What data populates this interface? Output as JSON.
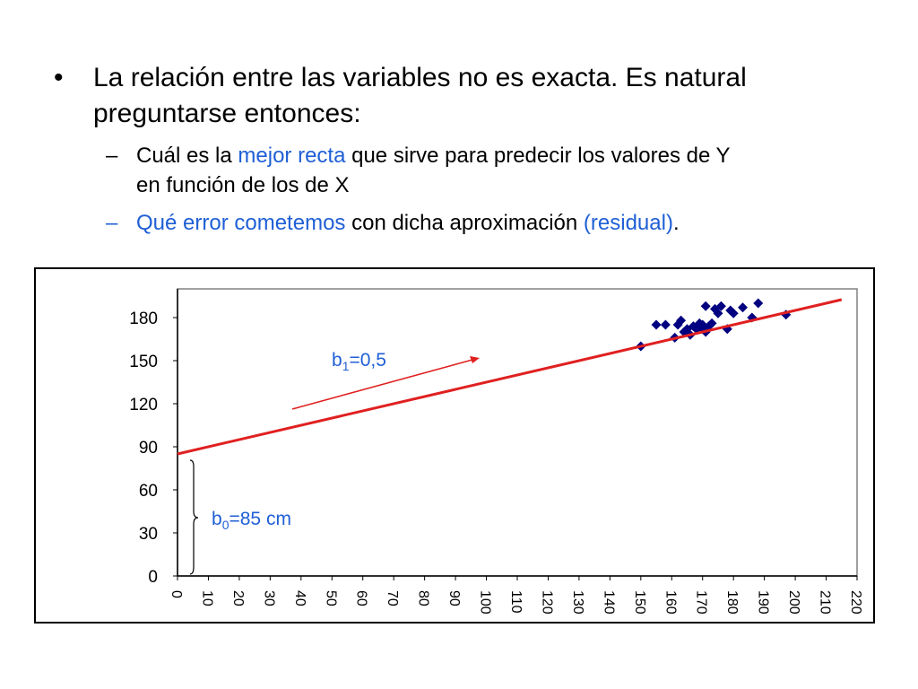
{
  "slide": {
    "bullet1": {
      "marker": "•",
      "line1": "La relación entre las variables no es exacta. Es natural",
      "line2": "preguntarse entonces:"
    },
    "sub1": {
      "marker": "–",
      "pre": " Cuál es la ",
      "highlight": "mejor recta",
      "post": " que sirve para predecir los valores de Y",
      "line2": "en función de los de X"
    },
    "sub2": {
      "marker": "–",
      "highlight1": "Qué error cometemos",
      "mid": " con dicha aproximación ",
      "highlight2": "(residual)",
      "end": "."
    }
  },
  "colors": {
    "highlight": "#1f5fd6",
    "points": "#000080",
    "regression_line": "#e02020",
    "arrow": "#e02020",
    "annotation": "#1f5fd6"
  },
  "chart_data": {
    "type": "scatter",
    "title": "",
    "xlabel": "",
    "ylabel": "",
    "xlim": [
      0,
      220
    ],
    "ylim": [
      0,
      200
    ],
    "xticks": [
      "0",
      "10",
      "20",
      "30",
      "40",
      "50",
      "60",
      "70",
      "80",
      "90",
      "100",
      "110",
      "120",
      "130",
      "140",
      "150",
      "160",
      "170",
      "180",
      "190",
      "200",
      "210",
      "220"
    ],
    "yticks": [
      "0",
      "30",
      "60",
      "90",
      "120",
      "150",
      "180"
    ],
    "grid": false,
    "series": [
      {
        "points": [
          [
            150,
            160
          ],
          [
            155,
            175
          ],
          [
            158,
            175
          ],
          [
            161,
            166
          ],
          [
            162,
            175
          ],
          [
            163,
            178
          ],
          [
            164,
            170
          ],
          [
            165,
            172
          ],
          [
            166,
            168
          ],
          [
            167,
            174
          ],
          [
            168,
            172
          ],
          [
            169,
            176
          ],
          [
            170,
            175
          ],
          [
            170,
            172
          ],
          [
            171,
            170
          ],
          [
            171,
            188
          ],
          [
            172,
            174
          ],
          [
            173,
            176
          ],
          [
            174,
            186
          ],
          [
            175,
            183
          ],
          [
            176,
            188
          ],
          [
            178,
            172
          ],
          [
            179,
            185
          ],
          [
            180,
            183
          ],
          [
            183,
            187
          ],
          [
            186,
            180
          ],
          [
            188,
            190
          ],
          [
            197,
            182
          ]
        ]
      }
    ],
    "regression": {
      "b0": 85,
      "b1": 0.5,
      "x_range": [
        0,
        215
      ]
    },
    "annotations": {
      "slope": {
        "label_prefix": "b",
        "label_sub": "1",
        "label_rest": "=0,5"
      },
      "intercept": {
        "label_prefix": "b",
        "label_sub": "0",
        "label_rest": "=85 cm"
      }
    }
  }
}
